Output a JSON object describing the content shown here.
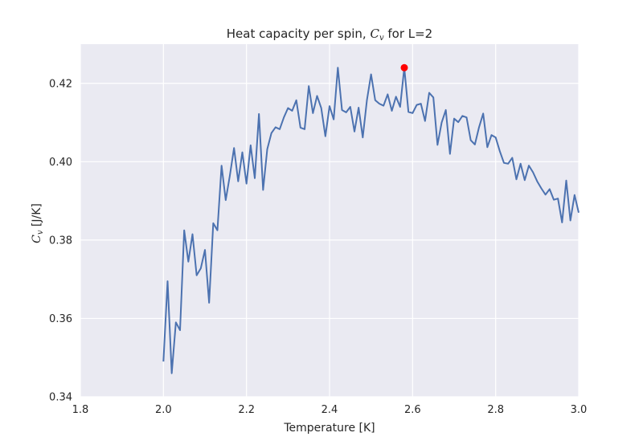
{
  "colors": {
    "plot_background": "#eaeaf2",
    "grid": "#ffffff",
    "line": "#4c72b0",
    "marker": "#ff0000",
    "text": "#262626"
  },
  "chart_data": {
    "type": "line",
    "title_prefix": "Heat capacity per spin, ",
    "title_math_base": "C",
    "title_math_sub": "v",
    "title_suffix": " for L=2",
    "xlabel": "Temperature [K]",
    "ylabel_math_base": "C",
    "ylabel_math_sub": "v",
    "ylabel_suffix": " [J/K]",
    "xlim": [
      1.8,
      3.0
    ],
    "ylim": [
      0.34,
      0.43
    ],
    "grid": true,
    "x_ticks": [
      {
        "value": 1.8,
        "label": "1.8"
      },
      {
        "value": 2.0,
        "label": "2.0"
      },
      {
        "value": 2.2,
        "label": "2.2"
      },
      {
        "value": 2.4,
        "label": "2.4"
      },
      {
        "value": 2.6,
        "label": "2.6"
      },
      {
        "value": 2.8,
        "label": "2.8"
      },
      {
        "value": 3.0,
        "label": "3.0"
      }
    ],
    "y_ticks": [
      {
        "value": 0.34,
        "label": "0.34"
      },
      {
        "value": 0.36,
        "label": "0.36"
      },
      {
        "value": 0.38,
        "label": "0.38"
      },
      {
        "value": 0.4,
        "label": "0.40"
      },
      {
        "value": 0.42,
        "label": "0.42"
      }
    ],
    "series": [
      {
        "x": [
          2.0,
          2.01,
          2.02,
          2.03,
          2.04,
          2.05,
          2.06,
          2.07,
          2.08,
          2.09,
          2.1,
          2.11,
          2.12,
          2.13,
          2.14,
          2.15,
          2.16,
          2.17,
          2.18,
          2.19,
          2.2,
          2.21,
          2.22,
          2.23,
          2.24,
          2.25,
          2.26,
          2.27,
          2.28,
          2.29,
          2.3,
          2.31,
          2.32,
          2.33,
          2.34,
          2.35,
          2.36,
          2.37,
          2.38,
          2.39,
          2.4,
          2.41,
          2.42,
          2.43,
          2.44,
          2.45,
          2.46,
          2.47,
          2.48,
          2.49,
          2.5,
          2.51,
          2.52,
          2.53,
          2.54,
          2.55,
          2.56,
          2.57,
          2.58,
          2.59,
          2.6,
          2.61,
          2.62,
          2.63,
          2.64,
          2.65,
          2.66,
          2.67,
          2.68,
          2.69,
          2.7,
          2.71,
          2.72,
          2.73,
          2.74,
          2.75,
          2.76,
          2.77,
          2.78,
          2.79,
          2.8,
          2.81,
          2.82,
          2.83,
          2.84,
          2.85,
          2.86,
          2.87,
          2.88,
          2.89,
          2.9,
          2.91,
          2.92,
          2.93,
          2.94,
          2.95,
          2.96,
          2.97,
          2.98,
          2.99,
          3.0
        ],
        "y": [
          0.349,
          0.3695,
          0.346,
          0.359,
          0.357,
          0.3825,
          0.3745,
          0.3815,
          0.371,
          0.3728,
          0.3775,
          0.364,
          0.3843,
          0.3825,
          0.399,
          0.3902,
          0.3965,
          0.4035,
          0.395,
          0.4024,
          0.3944,
          0.4042,
          0.3958,
          0.4122,
          0.3928,
          0.4032,
          0.4073,
          0.4088,
          0.4083,
          0.4113,
          0.4137,
          0.413,
          0.4157,
          0.4087,
          0.4083,
          0.4193,
          0.4124,
          0.4168,
          0.4137,
          0.4065,
          0.4142,
          0.4108,
          0.424,
          0.4132,
          0.4126,
          0.414,
          0.4077,
          0.4138,
          0.4062,
          0.4157,
          0.4223,
          0.4157,
          0.4148,
          0.4143,
          0.4172,
          0.413,
          0.4166,
          0.414,
          0.424,
          0.4127,
          0.4124,
          0.4145,
          0.4148,
          0.4104,
          0.4176,
          0.4164,
          0.4043,
          0.41,
          0.4132,
          0.402,
          0.411,
          0.4101,
          0.4117,
          0.4113,
          0.4055,
          0.4044,
          0.4088,
          0.4123,
          0.4037,
          0.4068,
          0.4062,
          0.4027,
          0.3997,
          0.3995,
          0.401,
          0.3955,
          0.3995,
          0.3953,
          0.399,
          0.3973,
          0.395,
          0.3932,
          0.3916,
          0.393,
          0.3903,
          0.3906,
          0.3845,
          0.3952,
          0.385,
          0.3915,
          0.387
        ]
      }
    ],
    "highlight_point": {
      "x": 2.58,
      "y": 0.424
    }
  }
}
